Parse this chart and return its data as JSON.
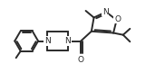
{
  "background_color": "#ffffff",
  "line_color": "#2a2a2a",
  "line_width": 1.4,
  "fig_width": 1.82,
  "fig_height": 0.91,
  "dpi": 100,
  "xlim": [
    0,
    10
  ],
  "ylim": [
    0,
    5
  ]
}
